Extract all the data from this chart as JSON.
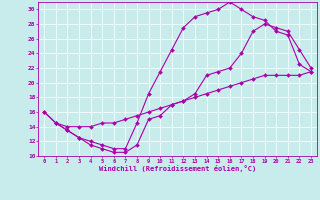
{
  "xlabel": "Windchill (Refroidissement éolien,°C)",
  "xlim": [
    -0.5,
    23.5
  ],
  "ylim": [
    10,
    31
  ],
  "xticks": [
    0,
    1,
    2,
    3,
    4,
    5,
    6,
    7,
    8,
    9,
    10,
    11,
    12,
    13,
    14,
    15,
    16,
    17,
    18,
    19,
    20,
    21,
    22,
    23
  ],
  "yticks": [
    10,
    12,
    14,
    16,
    18,
    20,
    22,
    24,
    26,
    28,
    30
  ],
  "bg_color": "#c8ecec",
  "line_color": "#aa00aa",
  "line1_x": [
    0,
    1,
    2,
    3,
    4,
    5,
    6,
    7,
    8,
    9,
    10,
    11,
    12,
    13,
    14,
    15,
    16,
    17,
    18,
    19,
    20,
    21,
    22,
    23
  ],
  "line1_y": [
    16,
    14.5,
    13.5,
    12.5,
    11.5,
    11,
    10.5,
    10.5,
    11.5,
    15,
    15.5,
    17,
    17.5,
    18.5,
    21,
    21.5,
    22,
    24,
    27,
    28,
    27.5,
    27,
    24.5,
    22
  ],
  "line2_x": [
    1,
    2,
    3,
    4,
    5,
    6,
    7,
    8,
    9,
    10,
    11,
    12,
    13,
    14,
    15,
    16,
    17,
    18,
    19,
    20,
    21,
    22,
    23
  ],
  "line2_y": [
    14.5,
    13.5,
    12.5,
    12,
    11.5,
    11,
    11,
    14.5,
    18.5,
    21.5,
    24.5,
    27.5,
    29,
    29.5,
    30,
    31,
    30,
    29,
    28.5,
    27,
    26.5,
    22.5,
    21.5
  ],
  "line3_x": [
    0,
    1,
    2,
    3,
    4,
    5,
    6,
    7,
    8,
    9,
    10,
    11,
    12,
    13,
    14,
    15,
    16,
    17,
    18,
    19,
    20,
    21,
    22,
    23
  ],
  "line3_y": [
    16,
    14.5,
    14,
    14,
    14,
    14.5,
    14.5,
    15,
    15.5,
    16,
    16.5,
    17,
    17.5,
    18,
    18.5,
    19,
    19.5,
    20,
    20.5,
    21,
    21,
    21,
    21,
    21.5
  ]
}
